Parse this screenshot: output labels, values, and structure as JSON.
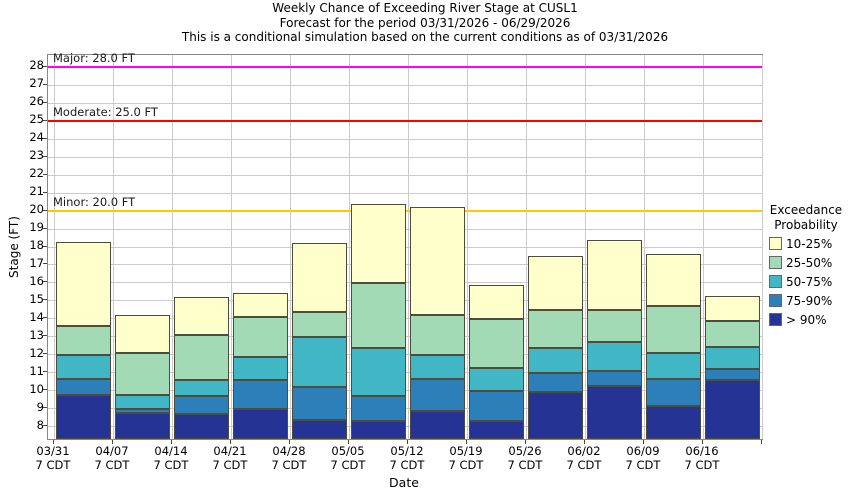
{
  "title": {
    "line1": "Weekly Chance of Exceeding River Stage at CUSL1",
    "line2": "Forecast for the period 03/31/2026 - 06/29/2026",
    "line3": "This is a conditional simulation based on the current conditions as of 03/31/2026"
  },
  "axes": {
    "y_label": "Stage (FT)",
    "x_label": "Date"
  },
  "legend": {
    "title_line1": "Exceedance",
    "title_line2": "Probability",
    "entries": [
      {
        "label": "10-25%",
        "color": "#FFFFCC"
      },
      {
        "label": "25-50%",
        "color": "#A1DAB4"
      },
      {
        "label": "50-75%",
        "color": "#41B6C4"
      },
      {
        "label": "75-90%",
        "color": "#2C7FB8"
      },
      {
        "label": "> 90%",
        "color": "#253494"
      }
    ]
  },
  "chart_data": {
    "type": "bar",
    "stacked": true,
    "title": "Weekly Chance of Exceeding River Stage at CUSL1",
    "xlabel": "Date",
    "ylabel": "Stage (FT)",
    "categories": [
      "03/31",
      "04/07",
      "04/14",
      "04/21",
      "04/28",
      "05/05",
      "05/12",
      "05/19",
      "05/26",
      "06/02",
      "06/09",
      "06/16"
    ],
    "tick_sublabel": "7 CDT",
    "base_value": 7.33,
    "ylim": [
      7.33,
      28.67
    ],
    "yticks": [
      8,
      9,
      10,
      11,
      12,
      13,
      14,
      15,
      16,
      17,
      18,
      19,
      20,
      21,
      22,
      23,
      24,
      25,
      26,
      27,
      28
    ],
    "grid": true,
    "legend_position": "right",
    "series": [
      {
        "name": "> 90%",
        "color": "#253494",
        "tops": [
          9.8,
          8.8,
          8.7,
          9.0,
          8.4,
          8.35,
          8.9,
          8.35,
          9.95,
          10.25,
          9.15,
          10.6
        ]
      },
      {
        "name": "75-90%",
        "color": "#2C7FB8",
        "tops": [
          10.65,
          9.0,
          9.7,
          10.6,
          10.2,
          9.7,
          10.65,
          10.0,
          11.0,
          11.1,
          10.65,
          11.2
        ]
      },
      {
        "name": "50-75%",
        "color": "#41B6C4",
        "tops": [
          12.0,
          9.8,
          10.6,
          11.9,
          13.0,
          12.4,
          12.0,
          11.3,
          12.4,
          12.7,
          12.1,
          12.45
        ]
      },
      {
        "name": "25-50%",
        "color": "#A1DAB4",
        "tops": [
          13.6,
          12.1,
          13.1,
          14.1,
          14.4,
          16.0,
          14.2,
          14.0,
          14.5,
          14.5,
          14.7,
          13.9
        ]
      },
      {
        "name": "10-25%",
        "color": "#FFFFCC",
        "tops": [
          18.3,
          14.2,
          15.2,
          15.45,
          18.2,
          20.4,
          20.25,
          15.9,
          17.5,
          18.4,
          17.6,
          15.25
        ]
      }
    ],
    "thresholds": [
      {
        "name": "Minor",
        "value": 20.0,
        "label": "Minor: 20.0 FT",
        "color": "#FFC800"
      },
      {
        "name": "Moderate",
        "value": 25.0,
        "label": "Moderate: 25.0 FT",
        "color": "#FF0000"
      },
      {
        "name": "Major",
        "value": 28.0,
        "label": "Major: 28.0 FT",
        "color": "#FF00FF"
      }
    ]
  }
}
